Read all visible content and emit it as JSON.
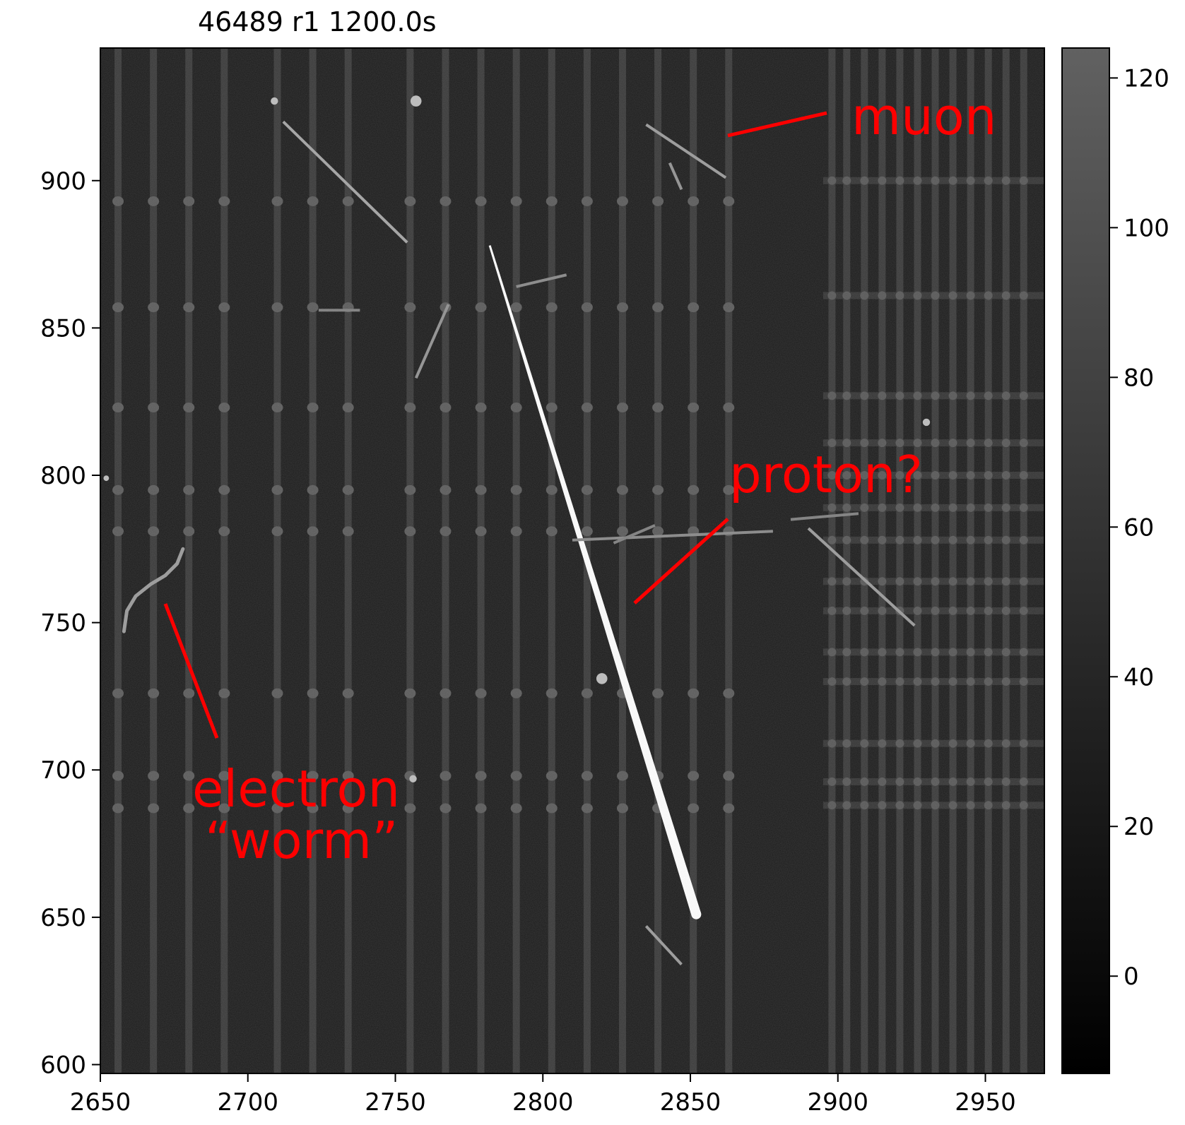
{
  "title": "46489 r1 1200.0s",
  "annotations": {
    "muon": "muon",
    "proton": "proton?",
    "electron_line1": "electron",
    "electron_line2": "“worm”",
    "color": "#ff0000"
  },
  "chart_data": {
    "type": "heatmap",
    "title": "46489 r1 1200.0s",
    "xlim": [
      2650,
      2970
    ],
    "ylim": [
      597,
      945
    ],
    "x_ticks": [
      "2650",
      "2700",
      "2750",
      "2800",
      "2850",
      "2900",
      "2950"
    ],
    "y_ticks": [
      "600",
      "650",
      "700",
      "750",
      "800",
      "850",
      "900"
    ],
    "colorbar": {
      "range": [
        -13,
        124
      ],
      "ticks": [
        "0",
        "20",
        "40",
        "60",
        "80",
        "100",
        "120"
      ],
      "colormap": "gray"
    },
    "vertical_columns_x": [
      2656,
      2668,
      2680,
      2692,
      2710,
      2722,
      2734,
      2755,
      2767,
      2779,
      2791,
      2803,
      2815,
      2827,
      2839,
      2851,
      2863,
      2898,
      2903,
      2909,
      2915,
      2921,
      2927,
      2933,
      2939,
      2945,
      2951,
      2957,
      2963
    ],
    "bright_rows_y": [
      893,
      857,
      823,
      795,
      781,
      726,
      698,
      687
    ],
    "right_block_rows_y": [
      900,
      861,
      827,
      811,
      800,
      789,
      778,
      764,
      754,
      740,
      730,
      709,
      696,
      688
    ],
    "tracks": [
      {
        "x1": 2782,
        "y1": 878,
        "x2": 2852,
        "y2": 651,
        "intensity": 124,
        "width_start": 3,
        "width_end": 14
      },
      {
        "x1": 2712,
        "y1": 920,
        "x2": 2754,
        "y2": 879,
        "intensity": 75,
        "width_start": 4,
        "width_end": 4
      },
      {
        "x1": 2835,
        "y1": 919,
        "x2": 2862,
        "y2": 901,
        "intensity": 70,
        "width_start": 4,
        "width_end": 4
      },
      {
        "x1": 2810,
        "y1": 778,
        "x2": 2878,
        "y2": 781,
        "intensity": 60,
        "width_start": 4,
        "width_end": 4
      },
      {
        "x1": 2884,
        "y1": 785,
        "x2": 2907,
        "y2": 787,
        "intensity": 55,
        "width_start": 4,
        "width_end": 4
      },
      {
        "x1": 2890,
        "y1": 782,
        "x2": 2926,
        "y2": 749,
        "intensity": 70,
        "width_start": 4,
        "width_end": 4
      },
      {
        "x1": 2768,
        "y1": 858,
        "x2": 2757,
        "y2": 833,
        "intensity": 65,
        "width_start": 4,
        "width_end": 4
      },
      {
        "x1": 2791,
        "y1": 864,
        "x2": 2808,
        "y2": 868,
        "intensity": 60,
        "width_start": 4,
        "width_end": 4
      },
      {
        "x1": 2724,
        "y1": 856,
        "x2": 2738,
        "y2": 856,
        "intensity": 55,
        "width_start": 4,
        "width_end": 4
      },
      {
        "x1": 2835,
        "y1": 647,
        "x2": 2847,
        "y2": 634,
        "intensity": 70,
        "width_start": 4,
        "width_end": 4
      },
      {
        "x1": 2843,
        "y1": 906,
        "x2": 2847,
        "y2": 897,
        "intensity": 65,
        "width_start": 4,
        "width_end": 4
      },
      {
        "x1": 2824,
        "y1": 777,
        "x2": 2838,
        "y2": 783,
        "intensity": 55,
        "width_start": 4,
        "width_end": 4
      }
    ],
    "worm_path": [
      [
        2658,
        747
      ],
      [
        2659,
        754
      ],
      [
        2662,
        759
      ],
      [
        2667,
        763
      ],
      [
        2672,
        766
      ],
      [
        2676,
        770
      ],
      [
        2678,
        775
      ]
    ],
    "blobs": [
      {
        "x": 2757,
        "y": 927,
        "r": 3
      },
      {
        "x": 2709,
        "y": 927,
        "r": 2
      },
      {
        "x": 2930,
        "y": 818,
        "r": 2
      },
      {
        "x": 2756,
        "y": 697,
        "r": 2
      },
      {
        "x": 2652,
        "y": 799,
        "r": 1.5
      },
      {
        "x": 2820,
        "y": 731,
        "r": 3
      }
    ]
  }
}
